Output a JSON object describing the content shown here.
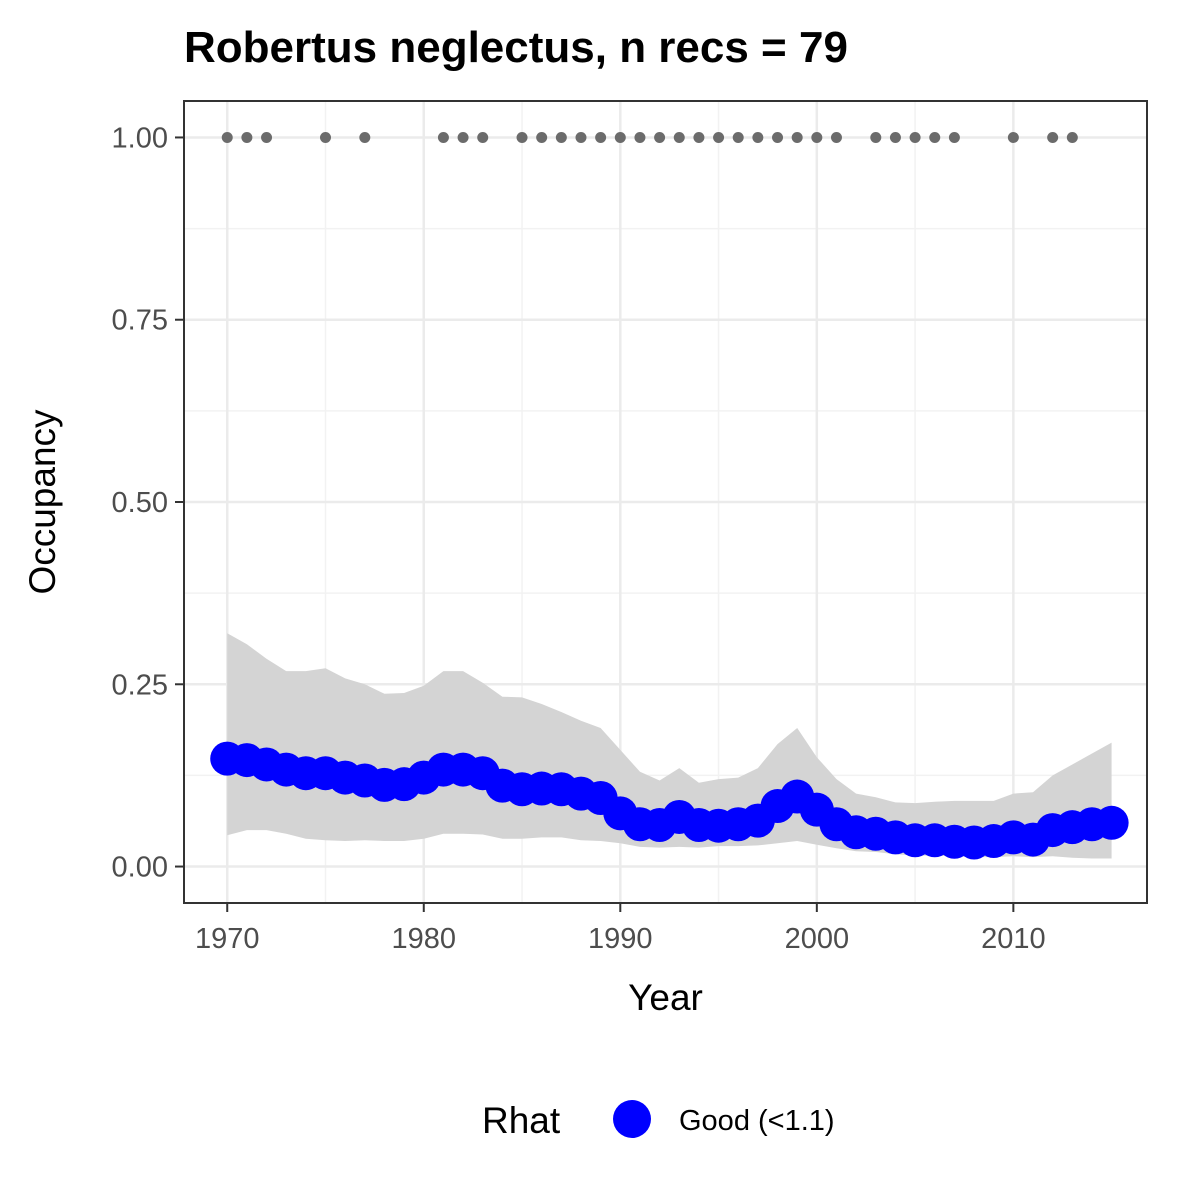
{
  "chart_data": {
    "type": "line",
    "title": "Robertus neglectus, n recs = 79",
    "xlabel": "Year",
    "ylabel": "Occupancy",
    "xlim": [
      1967.8,
      2016.8
    ],
    "ylim": [
      -0.05,
      1.05
    ],
    "x_ticks": [
      1970,
      1980,
      1990,
      2000,
      2010
    ],
    "x_tick_labels": [
      "1970",
      "1980",
      "1990",
      "2000",
      "2010"
    ],
    "y_ticks": [
      0,
      0.25,
      0.5,
      0.75,
      1
    ],
    "y_tick_labels": [
      "0.00",
      "0.25",
      "0.50",
      "0.75",
      "1.00"
    ],
    "grid": true,
    "legend": {
      "position": "bottom",
      "title": "Rhat",
      "entries": [
        {
          "label": "Good (<1.1)",
          "color": "#0000ff"
        }
      ]
    },
    "colors": {
      "mean": "#0000ff",
      "ribbon": "#d4d4d4",
      "records": "#6b6b6b"
    },
    "series": [
      {
        "name": "Good (<1.1)",
        "x": [
          1970,
          1971,
          1972,
          1973,
          1974,
          1975,
          1976,
          1977,
          1978,
          1979,
          1980,
          1981,
          1982,
          1983,
          1984,
          1985,
          1986,
          1987,
          1988,
          1989,
          1990,
          1991,
          1992,
          1993,
          1994,
          1995,
          1996,
          1997,
          1998,
          1999,
          2000,
          2001,
          2002,
          2003,
          2004,
          2005,
          2006,
          2007,
          2008,
          2009,
          2010,
          2011,
          2012,
          2013,
          2014,
          2015
        ],
        "y": [
          0.148,
          0.146,
          0.14,
          0.133,
          0.128,
          0.128,
          0.122,
          0.118,
          0.112,
          0.113,
          0.122,
          0.133,
          0.133,
          0.128,
          0.111,
          0.106,
          0.107,
          0.106,
          0.1,
          0.094,
          0.073,
          0.058,
          0.057,
          0.068,
          0.057,
          0.056,
          0.058,
          0.063,
          0.083,
          0.096,
          0.078,
          0.058,
          0.047,
          0.045,
          0.04,
          0.036,
          0.036,
          0.034,
          0.033,
          0.035,
          0.04,
          0.037,
          0.05,
          0.054,
          0.058,
          0.06
        ],
        "lower": [
          0.043,
          0.05,
          0.05,
          0.045,
          0.038,
          0.036,
          0.035,
          0.036,
          0.035,
          0.035,
          0.038,
          0.045,
          0.045,
          0.044,
          0.038,
          0.038,
          0.04,
          0.04,
          0.036,
          0.035,
          0.032,
          0.027,
          0.026,
          0.027,
          0.026,
          0.028,
          0.028,
          0.029,
          0.032,
          0.035,
          0.03,
          0.025,
          0.021,
          0.02,
          0.017,
          0.015,
          0.015,
          0.014,
          0.013,
          0.013,
          0.014,
          0.013,
          0.014,
          0.012,
          0.011,
          0.011
        ],
        "upper": [
          0.32,
          0.305,
          0.285,
          0.268,
          0.268,
          0.272,
          0.258,
          0.25,
          0.237,
          0.238,
          0.248,
          0.268,
          0.268,
          0.252,
          0.233,
          0.232,
          0.223,
          0.212,
          0.2,
          0.19,
          0.16,
          0.13,
          0.118,
          0.135,
          0.115,
          0.12,
          0.122,
          0.135,
          0.168,
          0.19,
          0.15,
          0.12,
          0.1,
          0.095,
          0.088,
          0.087,
          0.089,
          0.09,
          0.09,
          0.09,
          0.1,
          0.102,
          0.125,
          0.14,
          0.155,
          0.17
        ]
      }
    ],
    "records": {
      "x": [
        1970,
        1971,
        1972,
        1975,
        1977,
        1981,
        1982,
        1983,
        1985,
        1986,
        1987,
        1988,
        1989,
        1990,
        1991,
        1992,
        1993,
        1994,
        1995,
        1996,
        1997,
        1998,
        1999,
        2000,
        2001,
        2003,
        2004,
        2005,
        2006,
        2007,
        2010,
        2012,
        2013
      ],
      "y": 1.0
    }
  }
}
